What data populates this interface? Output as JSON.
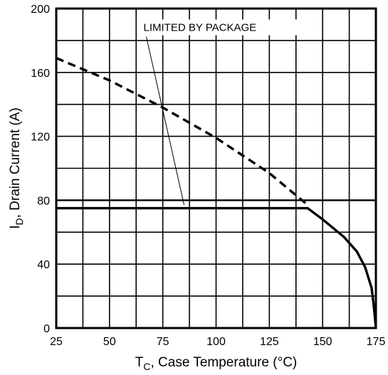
{
  "chart_data": {
    "type": "line",
    "title": "",
    "xlabel": {
      "main": "T",
      "subscript": "C",
      "rest": ", Case Temperature  (°C)"
    },
    "ylabel": {
      "main": "I",
      "subscript": "D",
      "rest": ", Drain Current (A)"
    },
    "xlim": [
      25,
      175
    ],
    "ylim": [
      0,
      200
    ],
    "x_ticks": [
      25,
      50,
      75,
      100,
      125,
      150,
      175
    ],
    "y_ticks": [
      0,
      40,
      80,
      120,
      160,
      200
    ],
    "x_tick_labels": [
      "25",
      "50",
      "75",
      "100",
      "125",
      "150",
      "175"
    ],
    "y_tick_labels": [
      "0",
      "40",
      "80",
      "120",
      "160",
      "200"
    ],
    "grid": true,
    "x_minor_step": 12.5,
    "y_minor_step": 20,
    "series": [
      {
        "style": "dashed",
        "points": [
          [
            25,
            169
          ],
          [
            50,
            155
          ],
          [
            75,
            138
          ],
          [
            100,
            119
          ],
          [
            125,
            97
          ],
          [
            143,
            77
          ]
        ]
      },
      {
        "style": "solid",
        "points": [
          [
            25,
            75
          ],
          [
            143,
            75
          ],
          [
            150,
            68
          ],
          [
            160,
            57
          ],
          [
            166,
            48
          ],
          [
            170,
            38
          ],
          [
            173,
            25
          ],
          [
            174,
            14
          ],
          [
            175,
            0
          ]
        ]
      }
    ],
    "annotations": [
      {
        "text": "LIMITED BY PACKAGE",
        "at": [
          100,
          186
        ],
        "points_to": [
          85,
          77
        ]
      },
      {
        "text": "",
        "guide_line_at_y": 80
      }
    ]
  }
}
